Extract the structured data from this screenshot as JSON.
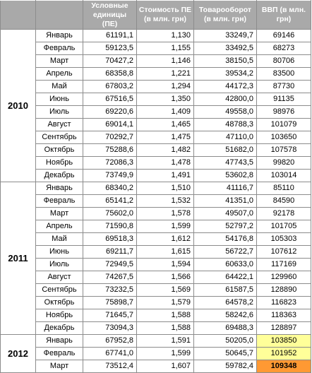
{
  "headers": {
    "pe_units": "Условные единицы (ПЕ)",
    "pe_cost": "Стоимость ПЕ (в млн. грн)",
    "turnover": "Товарооборот (в млн. грн)",
    "gdp": "ВВП (в млн. грн)"
  },
  "years": [
    {
      "year": "2010",
      "rows": [
        {
          "month": "Январь",
          "pe": "61191,1",
          "cost": "1,130",
          "turnover": "33249,7",
          "gdp": "69146"
        },
        {
          "month": "Февраль",
          "pe": "59123,5",
          "cost": "1,155",
          "turnover": "33492,5",
          "gdp": "68273"
        },
        {
          "month": "Март",
          "pe": "70427,2",
          "cost": "1,146",
          "turnover": "38150,5",
          "gdp": "80706"
        },
        {
          "month": "Апрель",
          "pe": "68358,8",
          "cost": "1,221",
          "turnover": "39534,2",
          "gdp": "83500"
        },
        {
          "month": "Май",
          "pe": "67803,2",
          "cost": "1,294",
          "turnover": "44172,3",
          "gdp": "87730"
        },
        {
          "month": "Июнь",
          "pe": "67516,5",
          "cost": "1,350",
          "turnover": "42800,0",
          "gdp": "91135"
        },
        {
          "month": "Июль",
          "pe": "69220,6",
          "cost": "1,409",
          "turnover": "49558,0",
          "gdp": "98976"
        },
        {
          "month": "Август",
          "pe": "69014,1",
          "cost": "1,465",
          "turnover": "48788,3",
          "gdp": "101079"
        },
        {
          "month": "Сентябрь",
          "pe": "70292,7",
          "cost": "1,475",
          "turnover": "47110,0",
          "gdp": "103650"
        },
        {
          "month": "Октябрь",
          "pe": "75288,6",
          "cost": "1,482",
          "turnover": "51682,0",
          "gdp": "107578"
        },
        {
          "month": "Ноябрь",
          "pe": "72086,3",
          "cost": "1,478",
          "turnover": "47743,5",
          "gdp": "99820"
        },
        {
          "month": "Декабрь",
          "pe": "73749,9",
          "cost": "1,491",
          "turnover": "53602,8",
          "gdp": "103014"
        }
      ]
    },
    {
      "year": "2011",
      "rows": [
        {
          "month": "Январь",
          "pe": "68340,2",
          "cost": "1,510",
          "turnover": "41116,7",
          "gdp": "85110"
        },
        {
          "month": "Февраль",
          "pe": "65141,2",
          "cost": "1,532",
          "turnover": "41351,0",
          "gdp": "84590"
        },
        {
          "month": "Март",
          "pe": "75602,0",
          "cost": "1,578",
          "turnover": "49507,0",
          "gdp": "92178"
        },
        {
          "month": "Апрель",
          "pe": "71590,8",
          "cost": "1,599",
          "turnover": "52797,2",
          "gdp": "101705"
        },
        {
          "month": "Май",
          "pe": "69518,3",
          "cost": "1,612",
          "turnover": "54176,8",
          "gdp": "105303"
        },
        {
          "month": "Июнь",
          "pe": "69211,7",
          "cost": "1,615",
          "turnover": "56722,7",
          "gdp": "107612"
        },
        {
          "month": "Июль",
          "pe": "72949,5",
          "cost": "1,594",
          "turnover": "60633,0",
          "gdp": "117169"
        },
        {
          "month": "Август",
          "pe": "74267,5",
          "cost": "1,566",
          "turnover": "64422,1",
          "gdp": "129960"
        },
        {
          "month": "Сентябрь",
          "pe": "73232,5",
          "cost": "1,569",
          "turnover": "61587,5",
          "gdp": "128890"
        },
        {
          "month": "Октябрь",
          "pe": "75898,7",
          "cost": "1,579",
          "turnover": "64578,2",
          "gdp": "116823"
        },
        {
          "month": "Ноябрь",
          "pe": "71645,7",
          "cost": "1,588",
          "turnover": "58242,6",
          "gdp": "118363"
        },
        {
          "month": "Декабрь",
          "pe": "73094,3",
          "cost": "1,588",
          "turnover": "69488,3",
          "gdp": "128897"
        }
      ]
    },
    {
      "year": "2012",
      "rows": [
        {
          "month": "Январь",
          "pe": "67952,8",
          "cost": "1,591",
          "turnover": "50205,0",
          "gdp": "103850",
          "highlight": "light"
        },
        {
          "month": "Февраль",
          "pe": "67741,0",
          "cost": "1,599",
          "turnover": "50645,7",
          "gdp": "101952",
          "highlight": "light"
        },
        {
          "month": "Март",
          "pe": "73512,4",
          "cost": "1,607",
          "turnover": "59782,4",
          "gdp": "109348",
          "highlight": "strong"
        }
      ]
    }
  ],
  "colors": {
    "header_bg": "#a9a9a9",
    "header_text": "#ffffff",
    "highlight_light": "#ffff99",
    "highlight_strong": "#ff9933",
    "border": "#8c8c8c"
  }
}
